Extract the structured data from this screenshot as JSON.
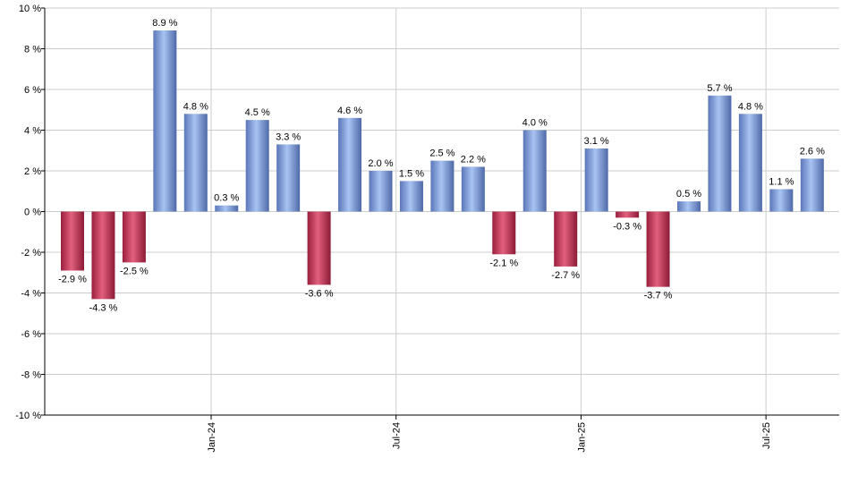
{
  "chart_data": {
    "type": "bar",
    "title": "",
    "xlabel": "",
    "ylabel": "",
    "ylim": [
      -10,
      10
    ],
    "y_ticks": [
      -10,
      -8,
      -6,
      -4,
      -2,
      0,
      2,
      4,
      6,
      8,
      10
    ],
    "y_tick_suffix": " %",
    "grid": true,
    "legend": "none",
    "colors": {
      "positive": "#7b9ee0",
      "negative": "#c83a5c",
      "grid": "#cccccc",
      "axis": "#000000"
    },
    "x_tick_labels": [
      {
        "label": "Jan-24",
        "index": 5
      },
      {
        "label": "Jul-24",
        "index": 11
      },
      {
        "label": "Jan-25",
        "index": 17
      },
      {
        "label": "Jul-25",
        "index": 23
      }
    ],
    "values": [
      -2.9,
      -4.3,
      -2.5,
      8.9,
      4.8,
      0.3,
      4.5,
      3.3,
      -3.6,
      4.6,
      2.0,
      1.5,
      2.5,
      2.2,
      -2.1,
      4.0,
      -2.7,
      3.1,
      -0.3,
      -3.7,
      0.5,
      5.7,
      4.8,
      1.1,
      2.6
    ],
    "value_labels": [
      "-2.9 %",
      "-4.3 %",
      "-2.5 %",
      "8.9 %",
      "4.8 %",
      "0.3 %",
      "4.5 %",
      "3.3 %",
      "-3.6 %",
      "4.6 %",
      "2.0 %",
      "1.5 %",
      "2.5 %",
      "2.2 %",
      "-2.1 %",
      "4.0 %",
      "-2.7 %",
      "3.1 %",
      "-0.3 %",
      "-3.7 %",
      "0.5 %",
      "5.7 %",
      "4.8 %",
      "1.1 %",
      "2.6 %"
    ]
  }
}
